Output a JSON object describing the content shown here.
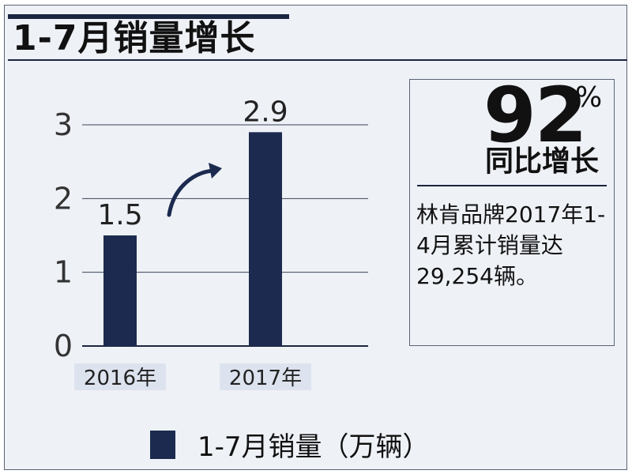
{
  "title": "1-7月销量增长",
  "chart_data": {
    "type": "bar",
    "categories": [
      "2016年",
      "2017年"
    ],
    "values": [
      1.5,
      2.9
    ],
    "ylim": [
      0,
      3
    ],
    "yticks": [
      "0",
      "1",
      "2",
      "3"
    ],
    "grid": true,
    "bar_color": "#1b2a4e",
    "legend": {
      "label": "1-7月销量（万辆）",
      "position": "bottom"
    }
  },
  "stat": {
    "number": "92",
    "unit": "%",
    "caption": "同比增长",
    "description": "林肯品牌2017年1-4月累计销量达29,254辆。"
  }
}
